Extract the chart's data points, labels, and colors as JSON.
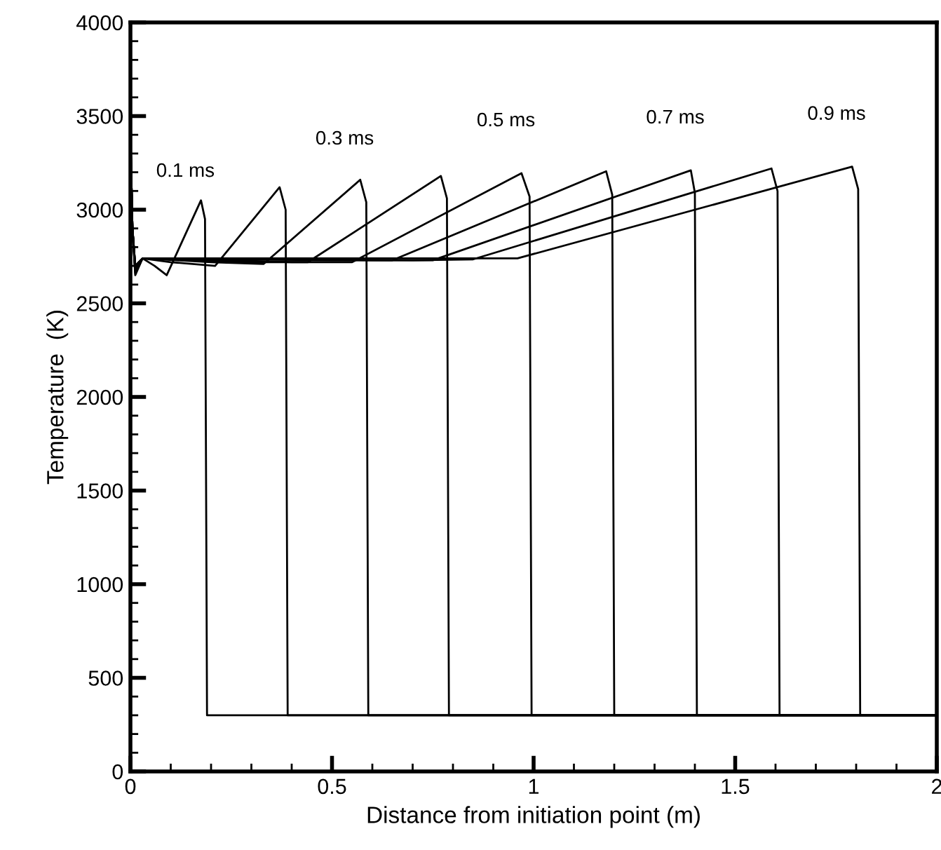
{
  "chart_data": {
    "type": "line",
    "xlabel": "Distance from initiation point (m)",
    "ylabel": "Temperature  (K)",
    "xlim": [
      0,
      2
    ],
    "ylim": [
      0,
      4000
    ],
    "xticks": [
      0,
      0.5,
      1,
      1.5,
      2
    ],
    "yticks": [
      0,
      500,
      1000,
      1500,
      2000,
      2500,
      3000,
      3500,
      4000
    ],
    "grid": false,
    "legend": false,
    "marker": "none",
    "line_style": "solid",
    "series": [
      {
        "color": "#000000",
        "x": [
          0,
          0.005,
          0.012,
          0.03,
          0.06,
          0.09,
          0.175,
          0.185,
          0.19,
          0.2,
          2
        ],
        "values": [
          3400,
          2900,
          2650,
          2740,
          2700,
          2650,
          3050,
          2950,
          300,
          300,
          300
        ]
      },
      {
        "color": "#000000",
        "x": [
          0,
          0.005,
          0.012,
          0.03,
          0.1,
          0.21,
          0.37,
          0.385,
          0.39,
          0.4,
          2
        ],
        "values": [
          3400,
          2900,
          2660,
          2740,
          2720,
          2700,
          3120,
          3000,
          300,
          300,
          300
        ]
      },
      {
        "color": "#000000",
        "x": [
          0,
          0.005,
          0.012,
          0.03,
          0.2,
          0.33,
          0.57,
          0.585,
          0.59,
          0.6,
          2
        ],
        "values": [
          3400,
          2900,
          2670,
          2740,
          2720,
          2710,
          3160,
          3040,
          300,
          300,
          300
        ]
      },
      {
        "color": "#000000",
        "x": [
          0,
          0.005,
          0.012,
          0.03,
          0.3,
          0.44,
          0.77,
          0.785,
          0.79,
          0.8,
          2
        ],
        "values": [
          3400,
          2900,
          2680,
          2740,
          2720,
          2720,
          3180,
          3060,
          300,
          300,
          300
        ]
      },
      {
        "color": "#000000",
        "x": [
          0,
          0.005,
          0.012,
          0.03,
          0.4,
          0.55,
          0.97,
          0.99,
          0.995,
          1.005,
          2
        ],
        "values": [
          3400,
          2900,
          2690,
          2740,
          2720,
          2720,
          3195,
          3070,
          300,
          300,
          300
        ]
      },
      {
        "color": "#000000",
        "x": [
          0,
          0.005,
          0.012,
          0.03,
          0.5,
          0.65,
          1.18,
          1.195,
          1.2,
          1.21,
          2
        ],
        "values": [
          3400,
          2900,
          2700,
          2740,
          2730,
          2730,
          3205,
          3080,
          300,
          300,
          300
        ]
      },
      {
        "color": "#000000",
        "x": [
          0,
          0.005,
          0.012,
          0.03,
          0.6,
          0.75,
          1.39,
          1.4,
          1.405,
          1.415,
          2
        ],
        "values": [
          3400,
          2900,
          2700,
          2740,
          2730,
          2730,
          3210,
          3090,
          300,
          300,
          300
        ]
      },
      {
        "color": "#000000",
        "x": [
          0,
          0.005,
          0.012,
          0.03,
          0.7,
          0.85,
          1.59,
          1.605,
          1.61,
          1.62,
          2
        ],
        "values": [
          3400,
          2900,
          2700,
          2740,
          2730,
          2735,
          3220,
          3100,
          300,
          300,
          300
        ]
      },
      {
        "color": "#000000",
        "x": [
          0,
          0.005,
          0.012,
          0.03,
          0.8,
          0.96,
          1.79,
          1.805,
          1.81,
          1.82,
          2
        ],
        "values": [
          3400,
          2900,
          2700,
          2740,
          2740,
          2740,
          3230,
          3110,
          300,
          300,
          300
        ]
      }
    ],
    "annotations": [
      "0.1 ms",
      "0.3 ms",
      "0.5 ms",
      "0.7 ms",
      "0.9 ms"
    ]
  }
}
